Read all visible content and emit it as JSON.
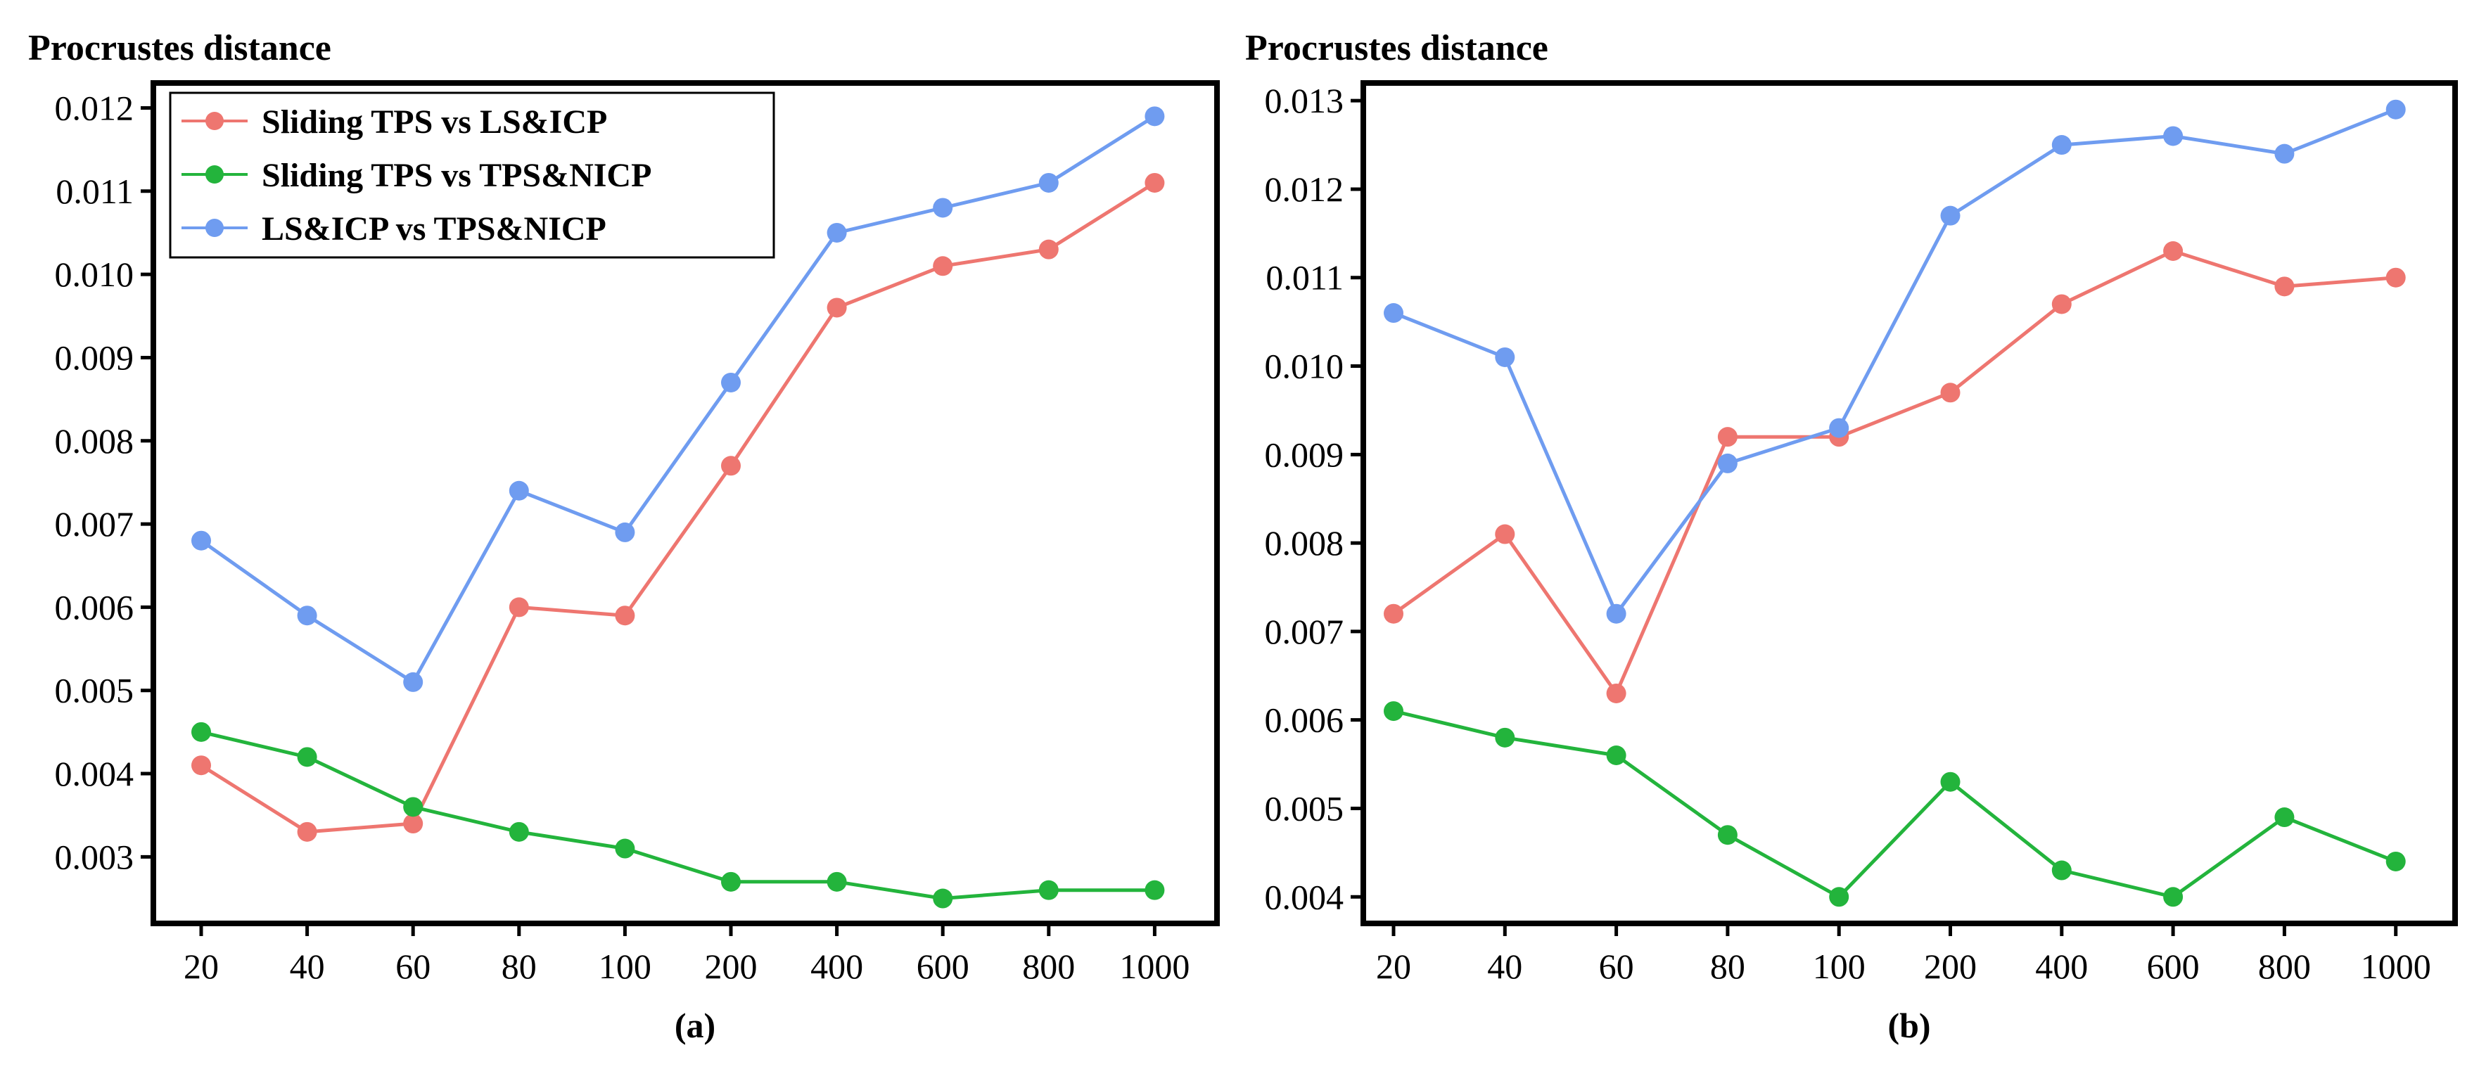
{
  "series_style": [
    {
      "name": "Sliding TPS vs LS&ICP",
      "color": "#EE7670"
    },
    {
      "name": "Sliding TPS vs TPS&NICP",
      "color": "#23B43C"
    },
    {
      "name": "LS&ICP vs TPS&NICP",
      "color": "#6F9CF0"
    }
  ],
  "chart_data": [
    {
      "type": "line",
      "panel_label": "(a)",
      "ylabel": "Procrustes distance",
      "xlabel": "",
      "categories": [
        "20",
        "40",
        "60",
        "80",
        "100",
        "200",
        "400",
        "600",
        "800",
        "1000"
      ],
      "ylim": [
        0.0022,
        0.0123
      ],
      "yticks": [
        "0.003",
        "0.004",
        "0.005",
        "0.006",
        "0.007",
        "0.008",
        "0.009",
        "0.010",
        "0.011",
        "0.012"
      ],
      "legend": "top-left",
      "series": [
        {
          "name": "Sliding TPS vs LS&ICP",
          "values": [
            0.0041,
            0.0033,
            0.0034,
            0.006,
            0.0059,
            0.0077,
            0.0096,
            0.0101,
            0.0103,
            0.0111
          ]
        },
        {
          "name": "Sliding TPS vs TPS&NICP",
          "values": [
            0.0045,
            0.0042,
            0.0036,
            0.0033,
            0.0031,
            0.0027,
            0.0027,
            0.0025,
            0.0026,
            0.0026
          ]
        },
        {
          "name": "LS&ICP vs TPS&NICP",
          "values": [
            0.0068,
            0.0059,
            0.0051,
            0.0074,
            0.0069,
            0.0087,
            0.0105,
            0.0108,
            0.0111,
            0.0119
          ]
        }
      ]
    },
    {
      "type": "line",
      "panel_label": "(b)",
      "ylabel": "Procrustes distance",
      "xlabel": "",
      "categories": [
        "20",
        "40",
        "60",
        "80",
        "100",
        "200",
        "400",
        "600",
        "800",
        "1000"
      ],
      "ylim": [
        0.0037,
        0.0132
      ],
      "yticks": [
        "0.004",
        "0.005",
        "0.006",
        "0.007",
        "0.008",
        "0.009",
        "0.010",
        "0.011",
        "0.012",
        "0.013"
      ],
      "legend": "none",
      "series": [
        {
          "name": "Sliding TPS vs LS&ICP",
          "values": [
            0.0072,
            0.0081,
            0.0063,
            0.0092,
            0.0092,
            0.0097,
            0.0107,
            0.0113,
            0.0109,
            0.011
          ]
        },
        {
          "name": "Sliding TPS vs TPS&NICP",
          "values": [
            0.0061,
            0.0058,
            0.0056,
            0.0047,
            0.004,
            0.0053,
            0.0043,
            0.004,
            0.0049,
            0.0044
          ]
        },
        {
          "name": "LS&ICP vs TPS&NICP",
          "values": [
            0.0106,
            0.0101,
            0.0072,
            0.0089,
            0.0093,
            0.0117,
            0.0125,
            0.0126,
            0.0124,
            0.0129
          ]
        }
      ]
    }
  ]
}
